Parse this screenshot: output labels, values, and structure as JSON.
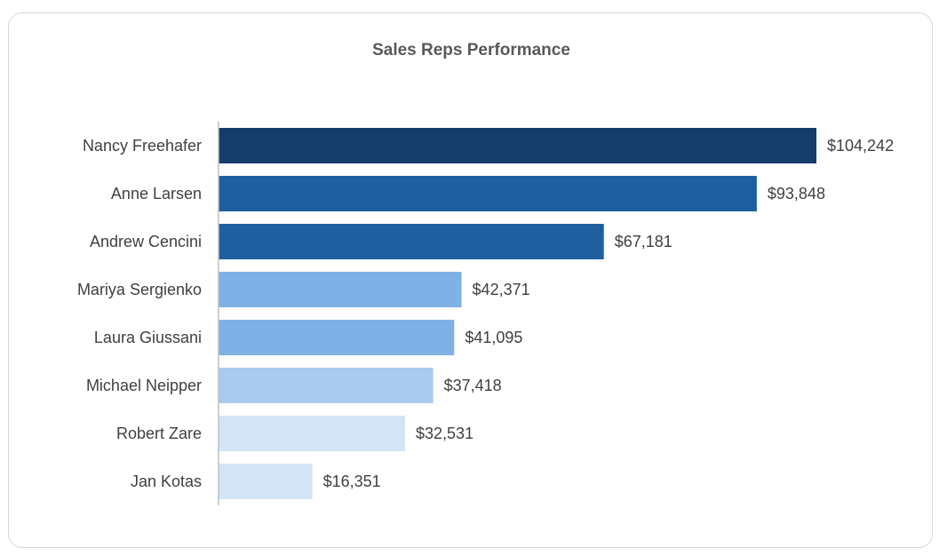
{
  "chart_data": {
    "type": "bar",
    "orientation": "horizontal",
    "title": "Sales Reps Performance",
    "xlabel": "",
    "ylabel": "",
    "categories": [
      "Nancy Freehafer",
      "Anne Larsen",
      "Andrew Cencini",
      "Mariya Sergienko",
      "Laura Giussani",
      "Michael Neipper",
      "Robert Zare",
      "Jan Kotas"
    ],
    "values": [
      104242,
      93848,
      67181,
      42371,
      41095,
      37418,
      32531,
      16351
    ],
    "value_labels": [
      "$104,242",
      "$93,848",
      "$67,181",
      "$42,371",
      "$41,095",
      "$37,418",
      "$32,531",
      "$16,351"
    ],
    "bar_colors": [
      "#143d6b",
      "#1f5f9f",
      "#1f5f9f",
      "#7fb1e6",
      "#7fb1e6",
      "#a9cbee",
      "#d3e4f6",
      "#d3e4f6"
    ],
    "xlim": [
      0,
      104242
    ],
    "grid": false,
    "legend": "none",
    "data_labels": true
  }
}
